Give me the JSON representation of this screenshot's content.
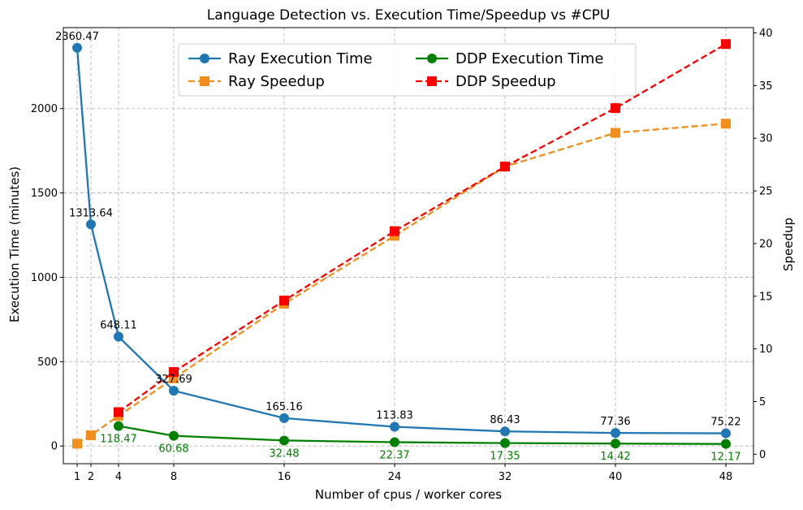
{
  "chart_data": {
    "type": "line",
    "title": "Language Detection vs. Execution Time/Speedup vs #CPU",
    "xlabel": "Number of cpus / worker cores",
    "ylabel_left": "Execution Time (minutes)",
    "ylabel_right": "Speedup",
    "xlim": [
      0,
      50
    ],
    "ylim_left": [
      -105,
      2480
    ],
    "ylim_right": [
      -0.9,
      40.5
    ],
    "x_ticks": [
      1,
      2,
      4,
      8,
      16,
      24,
      32,
      40,
      48
    ],
    "x_tick_labels": [
      "1",
      "2",
      "4",
      "8",
      "16",
      "24",
      "32",
      "40",
      "48"
    ],
    "y_left_ticks": [
      0,
      500,
      1000,
      1500,
      2000
    ],
    "y_left_tick_labels": [
      "0",
      "500",
      "1000",
      "1500",
      "2000"
    ],
    "y_right_ticks": [
      0,
      5,
      10,
      15,
      20,
      25,
      30,
      35,
      40
    ],
    "y_right_tick_labels": [
      "0",
      "5",
      "10",
      "15",
      "20",
      "25",
      "30",
      "35",
      "40"
    ],
    "grid": true,
    "legend_position": "top-center",
    "series": [
      {
        "name": "Ray Execution Time",
        "axis": "left",
        "style": "solid",
        "marker": "circle",
        "color": "#1f77b4",
        "x": [
          1,
          2,
          4,
          8,
          16,
          24,
          32,
          40,
          48
        ],
        "values": [
          2360.47,
          1313.64,
          648.11,
          327.69,
          165.16,
          113.83,
          86.43,
          77.36,
          75.22
        ],
        "labels": [
          "2360.47",
          "1313.64",
          "648.11",
          "327.69",
          "165.16",
          "113.83",
          "86.43",
          "77.36",
          "75.22"
        ],
        "label_color": "#000000",
        "label_position": "above"
      },
      {
        "name": "DDP Execution Time",
        "axis": "left",
        "style": "solid",
        "marker": "circle",
        "color": "#008000",
        "x": [
          4,
          8,
          16,
          24,
          32,
          40,
          48
        ],
        "values": [
          118.47,
          60.68,
          32.48,
          22.37,
          17.35,
          14.42,
          12.17
        ],
        "labels": [
          "118.47",
          "60.68",
          "32.48",
          "22.37",
          "17.35",
          "14.42",
          "12.17"
        ],
        "label_color": "#008000",
        "label_position": "below"
      },
      {
        "name": "Ray Speedup",
        "axis": "right",
        "style": "dashed",
        "marker": "square",
        "color": "#f28e1c",
        "x": [
          1,
          2,
          4,
          8,
          16,
          24,
          32,
          40,
          48
        ],
        "values": [
          1.0,
          1.8,
          3.64,
          7.2,
          14.29,
          20.74,
          27.31,
          30.51,
          31.38
        ]
      },
      {
        "name": "DDP Speedup",
        "axis": "right",
        "style": "dashed",
        "marker": "square",
        "color": "#ff0000",
        "x": [
          4,
          8,
          16,
          24,
          32,
          40,
          48
        ],
        "values": [
          4.0,
          7.81,
          14.59,
          21.18,
          27.31,
          32.86,
          38.94
        ]
      }
    ],
    "legend_order": [
      "Ray Execution Time",
      "Ray Speedup",
      "DDP Execution Time",
      "DDP Speedup"
    ]
  }
}
